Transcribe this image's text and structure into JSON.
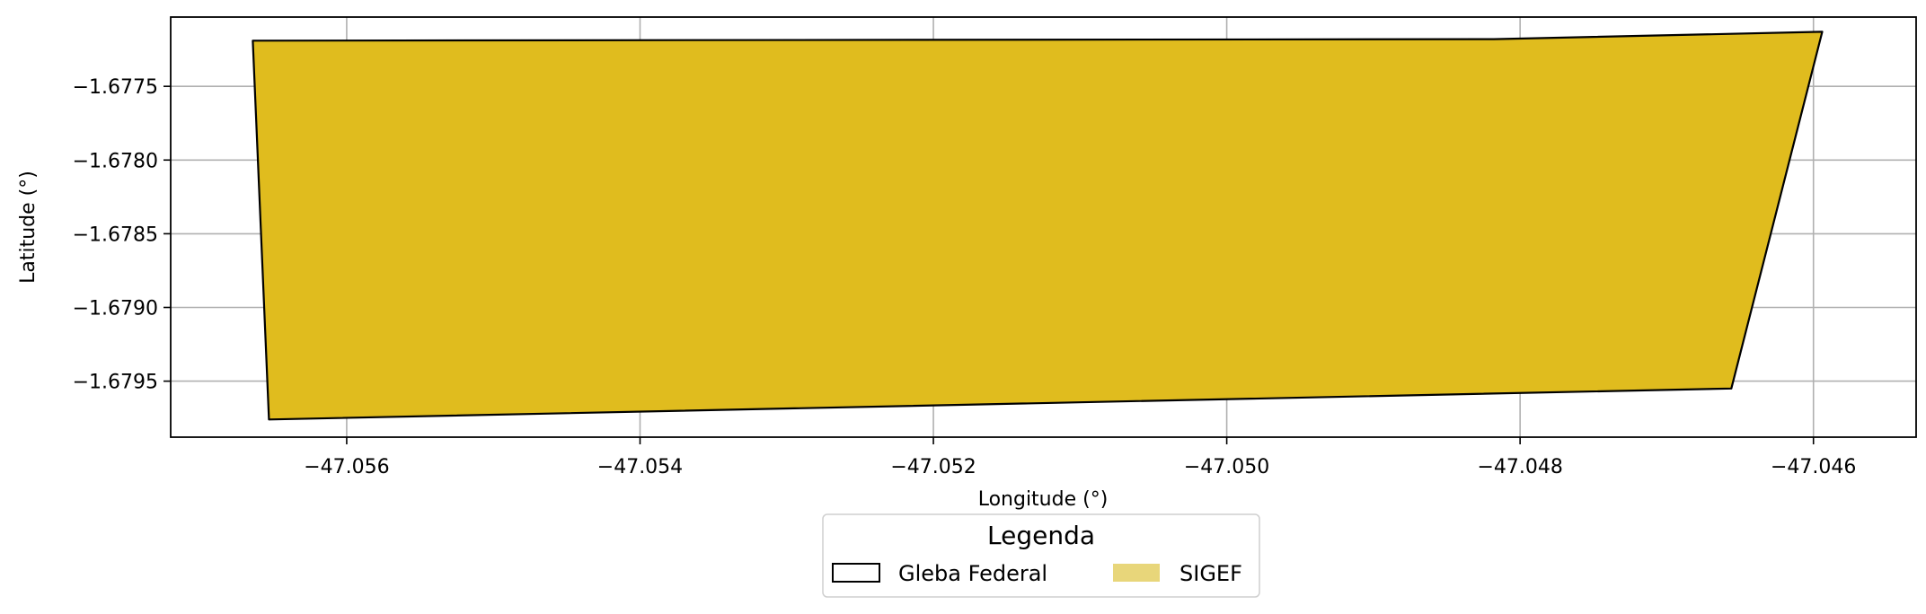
{
  "chart_data": {
    "type": "map",
    "xlabel": "Longitude (°)",
    "ylabel": "Latitude (°)",
    "xlim": [
      -47.0572,
      -47.0453
    ],
    "ylim": [
      -1.67988,
      -1.67703
    ],
    "grid": true,
    "x_ticks": [
      {
        "value": -47.056,
        "label": "−47.056"
      },
      {
        "value": -47.054,
        "label": "−47.054"
      },
      {
        "value": -47.052,
        "label": "−47.052"
      },
      {
        "value": -47.05,
        "label": "−47.050"
      },
      {
        "value": -47.048,
        "label": "−47.048"
      },
      {
        "value": -47.046,
        "label": "−47.046"
      }
    ],
    "y_ticks": [
      {
        "value": -1.6775,
        "label": "−1.6775"
      },
      {
        "value": -1.678,
        "label": "−1.6780"
      },
      {
        "value": -1.6785,
        "label": "−1.6785"
      },
      {
        "value": -1.679,
        "label": "−1.6790"
      },
      {
        "value": -1.6795,
        "label": "−1.6795"
      }
    ],
    "layers": [
      {
        "name": "SIGEF",
        "fill": "#e0bc1e",
        "legend_fill": "#e8d67a",
        "polygon": [
          [
            -47.05664,
            -1.67719
          ],
          [
            -47.04818,
            -1.67718
          ],
          [
            -47.04594,
            -1.67713
          ],
          [
            -47.04656,
            -1.67955
          ],
          [
            -47.05653,
            -1.67976
          ]
        ]
      },
      {
        "name": "Gleba Federal",
        "fill": "none",
        "stroke": "#000000",
        "polygon": [
          [
            -47.05664,
            -1.67719
          ],
          [
            -47.04818,
            -1.67718
          ],
          [
            -47.04594,
            -1.67713
          ],
          [
            -47.04656,
            -1.67955
          ],
          [
            -47.05653,
            -1.67976
          ]
        ]
      }
    ]
  },
  "legend": {
    "title": "Legenda",
    "placement": "bottom-center",
    "items": [
      {
        "label": "Gleba Federal",
        "style": "outline"
      },
      {
        "label": "SIGEF",
        "style": "fill"
      }
    ]
  }
}
